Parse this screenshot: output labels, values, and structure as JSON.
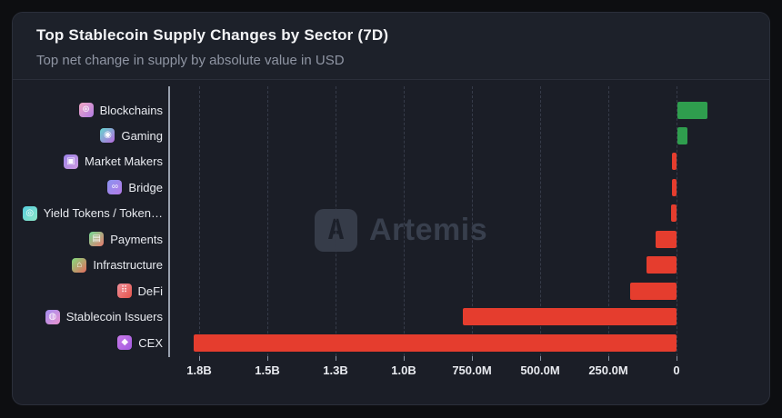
{
  "chart_data": {
    "type": "bar",
    "orientation": "horizontal",
    "title": "Top Stablecoin Supply Changes by Sector (7D)",
    "subtitle": "Top net change in supply by absolute value in USD",
    "unit": "USD",
    "value_note": "values_in_millions_usd_estimated_from_axis",
    "xlim_m": [
      -1875,
      350
    ],
    "grid": "vertical-dashed",
    "x_axis_ticks": [
      {
        "label": "1.8B",
        "value_m": 1750
      },
      {
        "label": "1.5B",
        "value_m": 1500
      },
      {
        "label": "1.3B",
        "value_m": 1250
      },
      {
        "label": "1.0B",
        "value_m": 1000
      },
      {
        "label": "750.0M",
        "value_m": 750
      },
      {
        "label": "500.0M",
        "value_m": 500
      },
      {
        "label": "250.0M",
        "value_m": 250
      },
      {
        "label": "0",
        "value_m": 0
      }
    ],
    "categories": [
      {
        "label": "Blockchains",
        "icon": "blockchains-icon",
        "icon_glyph": "⊛",
        "icon_colors": [
          "#f2a9c4",
          "#b07ae3"
        ],
        "value_m": 110
      },
      {
        "label": "Gaming",
        "icon": "gaming-icon",
        "icon_glyph": "◉",
        "icon_colors": [
          "#63d8cf",
          "#b869de"
        ],
        "value_m": 35
      },
      {
        "label": "Market Makers",
        "icon": "market-makers-icon",
        "icon_glyph": "▣",
        "icon_colors": [
          "#9b82e8",
          "#cf9ae0"
        ],
        "value_m": -18
      },
      {
        "label": "Bridge",
        "icon": "bridge-icon",
        "icon_glyph": "∞",
        "icon_colors": [
          "#8a93f0",
          "#b47ae6"
        ],
        "value_m": -18
      },
      {
        "label": "Yield Tokens / Token…",
        "icon": "yield-tokens-icon",
        "icon_glyph": "◎",
        "icon_colors": [
          "#55cede",
          "#8fe6c6"
        ],
        "value_m": -20
      },
      {
        "label": "Payments",
        "icon": "payments-icon",
        "icon_glyph": "▤",
        "icon_colors": [
          "#74dd96",
          "#e8796d"
        ],
        "value_m": -77
      },
      {
        "label": "Infrastructure",
        "icon": "infrastructure-icon",
        "icon_glyph": "⌂",
        "icon_colors": [
          "#82dd7e",
          "#e56b5e"
        ],
        "value_m": -110
      },
      {
        "label": "DeFi",
        "icon": "defi-icon",
        "icon_glyph": "⠿",
        "icon_colors": [
          "#ef8f9a",
          "#e4544a"
        ],
        "value_m": -170
      },
      {
        "label": "Stablecoin Issuers",
        "icon": "stablecoin-issuers-icon",
        "icon_glyph": "◍",
        "icon_colors": [
          "#a28df0",
          "#ea93cf"
        ],
        "value_m": -785
      },
      {
        "label": "CEX",
        "icon": "cex-icon",
        "icon_glyph": "◆",
        "icon_colors": [
          "#c77ae8",
          "#a35ae0"
        ],
        "value_m": -1770
      }
    ],
    "colors": {
      "positive": "#2f9e4e",
      "negative": "#e53d2e",
      "gridline": "#363b49",
      "axis_line": "#98a0ad",
      "tick_text": "#e9ebf0",
      "label_text": "#e9ebf0"
    }
  },
  "watermark": {
    "logo_glyph": "A",
    "text": "Artemis"
  }
}
